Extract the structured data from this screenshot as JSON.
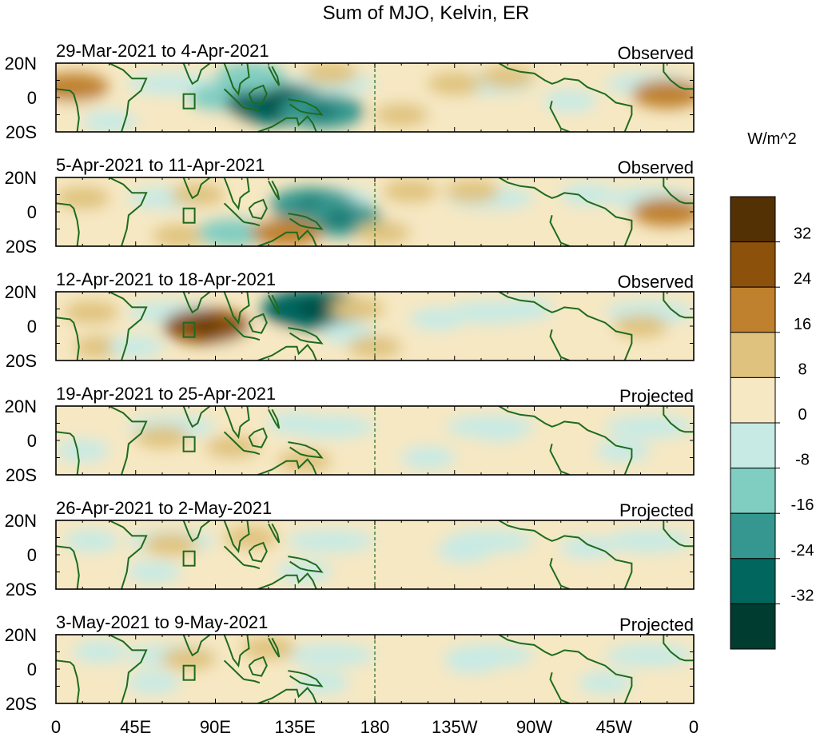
{
  "title": "Sum of MJO, Kelvin, ER",
  "colorbar": {
    "unit": "W/m^2",
    "bins": [
      {
        "label": "32",
        "color": "#543005"
      },
      {
        "label": "24",
        "color": "#8c510a"
      },
      {
        "label": "16",
        "color": "#bf812d"
      },
      {
        "label": "8",
        "color": "#dfc27d"
      },
      {
        "label": "0",
        "color": "#f6e8c3"
      },
      {
        "label": "-8",
        "color": "#c7eae5"
      },
      {
        "label": "-16",
        "color": "#80cdc1"
      },
      {
        "label": "-24",
        "color": "#35978f"
      },
      {
        "label": "-32",
        "color": "#01665e"
      },
      {
        "label": "",
        "color": "#003c30"
      }
    ]
  },
  "axes": {
    "lat_labels": [
      "20N",
      "0",
      "20S"
    ],
    "lon_labels": [
      "0",
      "45E",
      "90E",
      "135E",
      "180",
      "135W",
      "90W",
      "45W",
      "0"
    ]
  },
  "colors": {
    "coastline": "#1e6b1e",
    "frame": "#000000"
  },
  "panels": [
    {
      "date": "29-Mar-2021 to 4-Apr-2021",
      "status": "Observed"
    },
    {
      "date": "5-Apr-2021 to 11-Apr-2021",
      "status": "Observed"
    },
    {
      "date": "12-Apr-2021 to 18-Apr-2021",
      "status": "Observed"
    },
    {
      "date": "19-Apr-2021 to 25-Apr-2021",
      "status": "Projected"
    },
    {
      "date": "26-Apr-2021 to 2-May-2021",
      "status": "Projected"
    },
    {
      "date": "3-May-2021 to 9-May-2021",
      "status": "Projected"
    }
  ],
  "anomalies": [
    [
      {
        "lon": 10,
        "lat": 6,
        "level": 2
      },
      {
        "lon": 95,
        "lat": 0,
        "level": -2
      },
      {
        "lon": 125,
        "lat": -4,
        "level": -4
      },
      {
        "lon": 150,
        "lat": -8,
        "level": -3
      },
      {
        "lon": 110,
        "lat": 12,
        "level": -2
      },
      {
        "lon": 155,
        "lat": 14,
        "level": 1
      },
      {
        "lon": 195,
        "lat": -10,
        "level": 1
      },
      {
        "lon": 225,
        "lat": 8,
        "level": 1
      },
      {
        "lon": 255,
        "lat": 12,
        "level": 1
      },
      {
        "lon": 290,
        "lat": -2,
        "level": -1
      },
      {
        "lon": 345,
        "lat": 2,
        "level": 2
      },
      {
        "lon": 30,
        "lat": -14,
        "level": -1
      }
    ],
    [
      {
        "lon": 15,
        "lat": 8,
        "level": 1
      },
      {
        "lon": 80,
        "lat": 10,
        "level": 1
      },
      {
        "lon": 70,
        "lat": -14,
        "level": 1
      },
      {
        "lon": 100,
        "lat": -12,
        "level": -2
      },
      {
        "lon": 145,
        "lat": 4,
        "level": -3
      },
      {
        "lon": 160,
        "lat": -4,
        "level": -3
      },
      {
        "lon": 130,
        "lat": -12,
        "level": 2
      },
      {
        "lon": 185,
        "lat": -12,
        "level": 1
      },
      {
        "lon": 200,
        "lat": 12,
        "level": 1
      },
      {
        "lon": 235,
        "lat": 12,
        "level": 1
      },
      {
        "lon": 300,
        "lat": 10,
        "level": -1
      },
      {
        "lon": 345,
        "lat": 0,
        "level": 2
      }
    ],
    [
      {
        "lon": 85,
        "lat": 0,
        "level": 3
      },
      {
        "lon": 145,
        "lat": 10,
        "level": -4
      },
      {
        "lon": 170,
        "lat": 10,
        "level": 1
      },
      {
        "lon": 165,
        "lat": -4,
        "level": -1
      },
      {
        "lon": 180,
        "lat": -12,
        "level": 1
      },
      {
        "lon": 20,
        "lat": 8,
        "level": 1
      },
      {
        "lon": 25,
        "lat": -12,
        "level": 1
      },
      {
        "lon": 45,
        "lat": -12,
        "level": -1
      },
      {
        "lon": 265,
        "lat": 10,
        "level": -1
      },
      {
        "lon": 330,
        "lat": 0,
        "level": 1
      },
      {
        "lon": 215,
        "lat": 4,
        "level": -1
      }
    ],
    [
      {
        "lon": 100,
        "lat": -4,
        "level": 1
      },
      {
        "lon": 135,
        "lat": 10,
        "level": -1
      },
      {
        "lon": 140,
        "lat": -12,
        "level": 1
      },
      {
        "lon": 60,
        "lat": 2,
        "level": 1
      },
      {
        "lon": 210,
        "lat": -10,
        "level": -1
      },
      {
        "lon": 250,
        "lat": 6,
        "level": -1
      },
      {
        "lon": 320,
        "lat": -6,
        "level": -1
      },
      {
        "lon": 15,
        "lat": -6,
        "level": -1
      }
    ],
    [
      {
        "lon": 110,
        "lat": 10,
        "level": 1
      },
      {
        "lon": 65,
        "lat": 6,
        "level": 1
      },
      {
        "lon": 55,
        "lat": -10,
        "level": -1
      },
      {
        "lon": 140,
        "lat": -10,
        "level": -1
      },
      {
        "lon": 230,
        "lat": 2,
        "level": -1
      },
      {
        "lon": 300,
        "lat": 4,
        "level": -1
      },
      {
        "lon": 20,
        "lat": 8,
        "level": -1
      }
    ],
    [
      {
        "lon": 120,
        "lat": 12,
        "level": 1
      },
      {
        "lon": 75,
        "lat": 6,
        "level": 1
      },
      {
        "lon": 55,
        "lat": -8,
        "level": -1
      },
      {
        "lon": 150,
        "lat": -8,
        "level": -1
      },
      {
        "lon": 235,
        "lat": 4,
        "level": -1
      },
      {
        "lon": 310,
        "lat": -8,
        "level": -1
      },
      {
        "lon": 25,
        "lat": 10,
        "level": -1
      }
    ]
  ]
}
